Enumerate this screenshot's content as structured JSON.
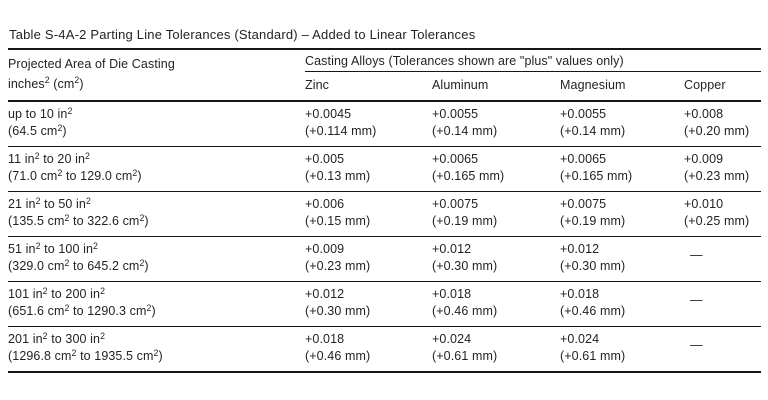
{
  "title": "Table S-4A-2 Parting Line Tolerances (Standard) – Added to Linear Tolerances",
  "header": {
    "area_label_line1": "Projected Area of Die Casting",
    "area_label_line2": "inches² (cm²)",
    "alloys_group_label": "Casting Alloys (Tolerances shown are \"plus\" values only)",
    "columns": [
      "Zinc",
      "Aluminum",
      "Magnesium",
      "Copper"
    ]
  },
  "no_value_symbol": "—",
  "rows": [
    {
      "area_in": "up to 10 in²",
      "area_cm": "(64.5 cm²)",
      "values": [
        {
          "in": "+0.0045",
          "mm": "(+0.114 mm)"
        },
        {
          "in": "+0.0055",
          "mm": "(+0.14 mm)"
        },
        {
          "in": "+0.0055",
          "mm": "(+0.14 mm)"
        },
        {
          "in": "+0.008",
          "mm": "(+0.20 mm)"
        }
      ]
    },
    {
      "area_in": "11 in² to 20 in²",
      "area_cm": "(71.0 cm² to 129.0 cm²)",
      "values": [
        {
          "in": "+0.005",
          "mm": "(+0.13 mm)"
        },
        {
          "in": "+0.0065",
          "mm": "(+0.165 mm)"
        },
        {
          "in": "+0.0065",
          "mm": "(+0.165 mm)"
        },
        {
          "in": "+0.009",
          "mm": "(+0.23 mm)"
        }
      ]
    },
    {
      "area_in": "21 in² to 50 in²",
      "area_cm": "(135.5 cm² to 322.6 cm²)",
      "values": [
        {
          "in": "+0.006",
          "mm": "(+0.15 mm)"
        },
        {
          "in": "+0.0075",
          "mm": "(+0.19 mm)"
        },
        {
          "in": "+0.0075",
          "mm": "(+0.19 mm)"
        },
        {
          "in": "+0.010",
          "mm": "(+0.25 mm)"
        }
      ]
    },
    {
      "area_in": "51 in² to 100 in²",
      "area_cm": "(329.0 cm² to 645.2 cm²)",
      "values": [
        {
          "in": "+0.009",
          "mm": "(+0.23 mm)"
        },
        {
          "in": "+0.012",
          "mm": "(+0.30 mm)"
        },
        {
          "in": "+0.012",
          "mm": "(+0.30 mm)"
        },
        {
          "in": "—",
          "mm": ""
        }
      ]
    },
    {
      "area_in": "101 in² to 200 in²",
      "area_cm": "(651.6 cm² to 1290.3 cm²)",
      "values": [
        {
          "in": "+0.012",
          "mm": "(+0.30 mm)"
        },
        {
          "in": "+0.018",
          "mm": "(+0.46 mm)"
        },
        {
          "in": "+0.018",
          "mm": "(+0.46 mm)"
        },
        {
          "in": "—",
          "mm": ""
        }
      ]
    },
    {
      "area_in": "201 in² to 300 in²",
      "area_cm": "(1296.8 cm² to 1935.5 cm²)",
      "values": [
        {
          "in": "+0.018",
          "mm": "(+0.46 mm)"
        },
        {
          "in": "+0.024",
          "mm": "(+0.61 mm)"
        },
        {
          "in": "+0.024",
          "mm": "(+0.61 mm)"
        },
        {
          "in": "—",
          "mm": ""
        }
      ]
    }
  ],
  "colors": {
    "text": "#232323",
    "line": "#161616",
    "background": "#ffffff"
  }
}
